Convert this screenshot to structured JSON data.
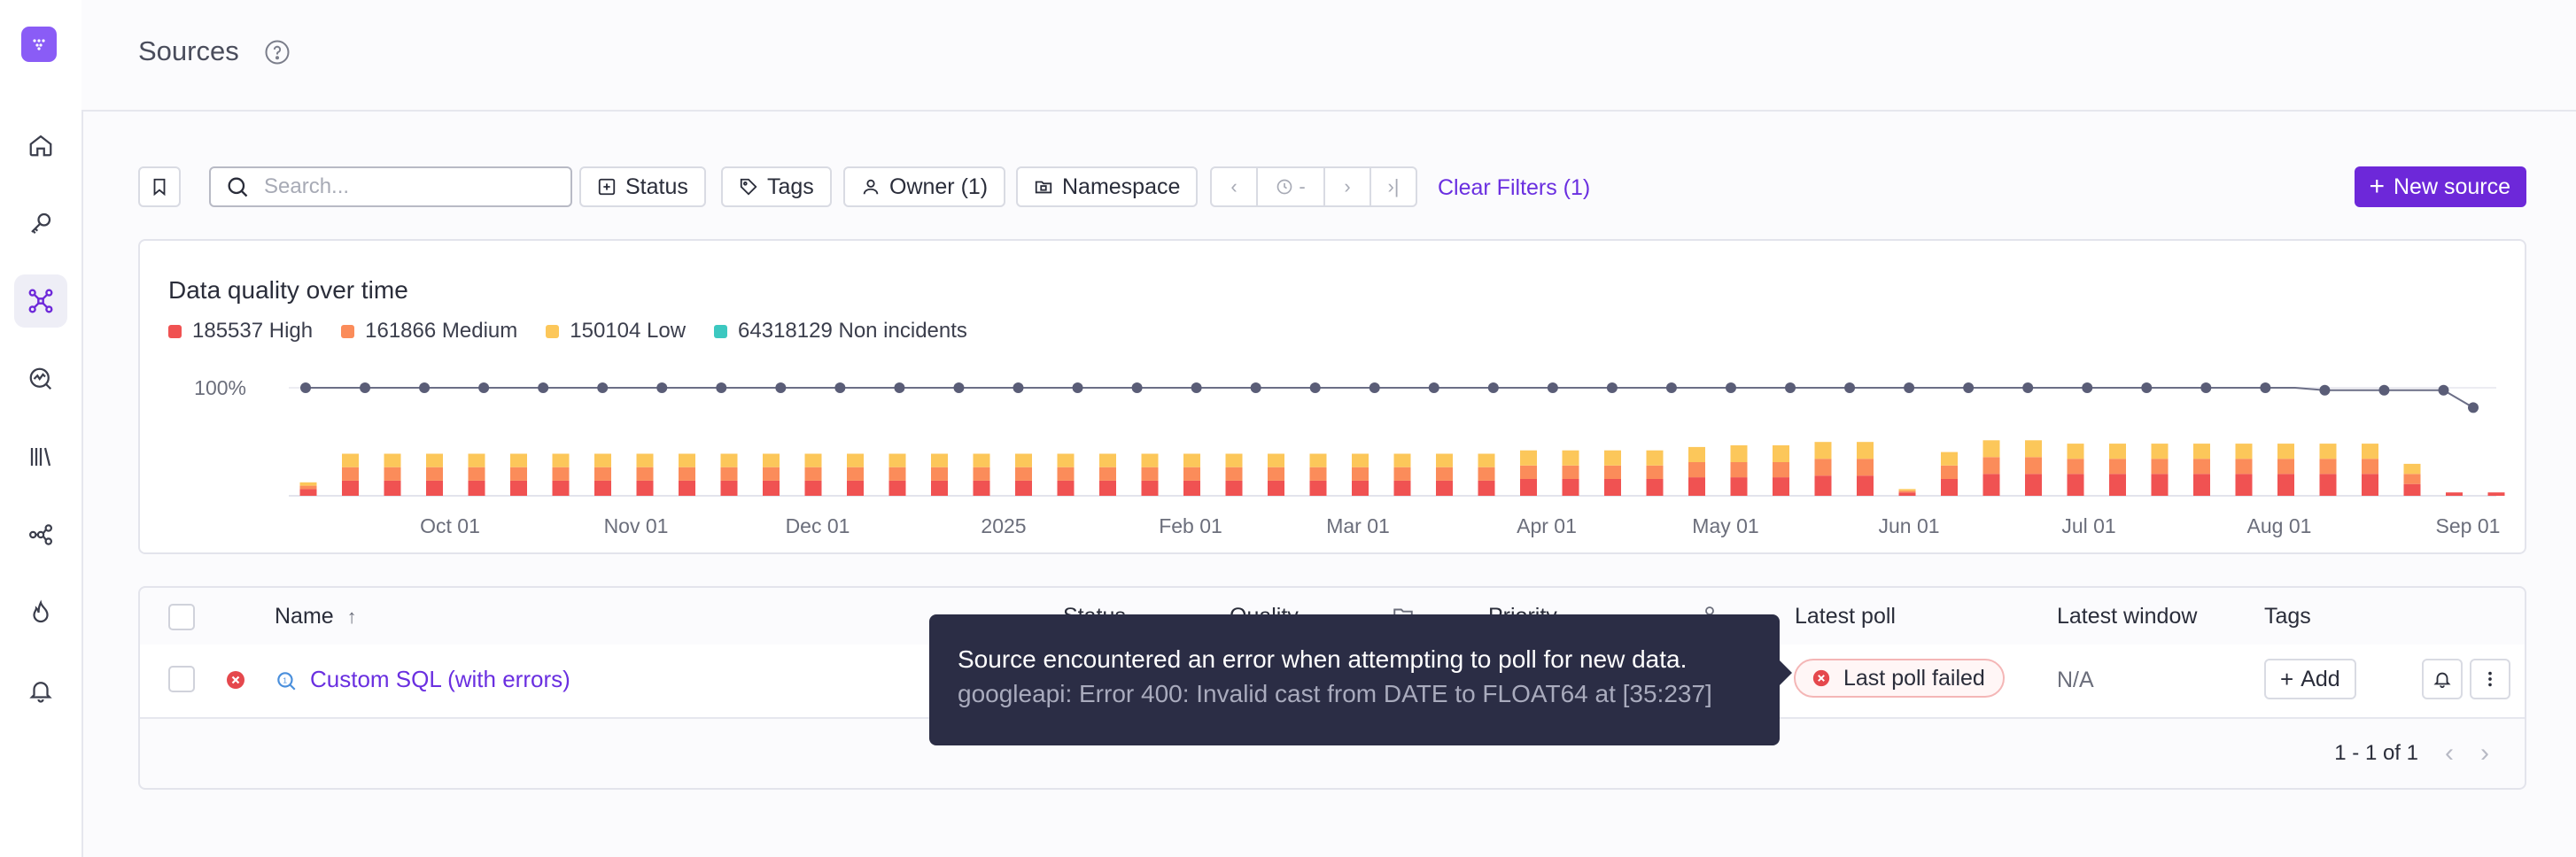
{
  "header": {
    "title": "Sources"
  },
  "filters": {
    "search_placeholder": "Search...",
    "status": "Status",
    "tags": "Tags",
    "owner": "Owner (1)",
    "namespace": "Namespace",
    "range": "-",
    "clear": "Clear Filters (1)",
    "new_source": "New source"
  },
  "chart": {
    "title": "Data quality over time",
    "legend": [
      {
        "label": "185537 High",
        "color": "#f05252"
      },
      {
        "label": "161866 Medium",
        "color": "#fb8c5a"
      },
      {
        "label": "150104 Low",
        "color": "#fcc75a"
      },
      {
        "label": "64318129 Non incidents",
        "color": "#3cc8c0"
      }
    ],
    "y_tick": "100%"
  },
  "chart_data": {
    "type": "bar",
    "title": "Data quality over time",
    "x_ticks": [
      "Oct 01",
      "Nov 01",
      "Dec 01",
      "2025",
      "Feb 01",
      "Mar 01",
      "Apr 01",
      "May 01",
      "Jun 01",
      "Jul 01",
      "Aug 01",
      "Sep 01"
    ],
    "y_ticks": [
      "100%"
    ],
    "series": [
      {
        "name": "High",
        "color": "#f05252",
        "values": [
          4,
          9,
          9,
          9,
          9,
          9,
          9,
          9,
          9,
          9,
          9,
          9,
          9,
          9,
          9,
          9,
          9,
          9,
          9,
          9,
          9,
          9,
          9,
          9,
          9,
          9,
          9,
          9,
          9,
          10,
          10,
          10,
          10,
          11,
          11,
          11,
          12,
          12,
          2,
          10,
          13,
          13,
          13,
          13,
          13,
          13,
          13,
          13,
          13,
          13,
          7,
          2,
          2,
          2,
          2,
          2,
          2,
          2
        ]
      },
      {
        "name": "Medium",
        "color": "#fb8c5a",
        "values": [
          2,
          8,
          8,
          8,
          8,
          8,
          8,
          8,
          8,
          8,
          8,
          8,
          8,
          8,
          8,
          8,
          8,
          8,
          8,
          8,
          8,
          8,
          8,
          8,
          8,
          8,
          8,
          8,
          8,
          8,
          8,
          8,
          8,
          9,
          9,
          9,
          10,
          10,
          1,
          8,
          10,
          10,
          9,
          9,
          9,
          9,
          9,
          9,
          9,
          9,
          6,
          0,
          0,
          0,
          0,
          0,
          0,
          0
        ]
      },
      {
        "name": "Low",
        "color": "#fcc75a",
        "values": [
          2,
          8,
          8,
          8,
          8,
          8,
          8,
          8,
          8,
          8,
          8,
          8,
          8,
          8,
          8,
          8,
          8,
          8,
          8,
          8,
          8,
          8,
          8,
          8,
          8,
          8,
          8,
          8,
          8,
          9,
          9,
          9,
          9,
          9,
          10,
          10,
          10,
          10,
          1,
          8,
          10,
          10,
          9,
          9,
          9,
          9,
          9,
          9,
          9,
          9,
          6,
          0,
          0,
          0,
          0,
          0,
          0,
          0
        ]
      }
    ],
    "quality_line": {
      "name": "Quality",
      "values": [
        100,
        100,
        100,
        100,
        100,
        100,
        100,
        100,
        100,
        100,
        100,
        100,
        100,
        100,
        100,
        100,
        100,
        100,
        100,
        100,
        100,
        100,
        100,
        100,
        100,
        100,
        100,
        100,
        100,
        100,
        100,
        100,
        100,
        100,
        100,
        100,
        100,
        100,
        100,
        100,
        100,
        100,
        100,
        100,
        100,
        100,
        100,
        100,
        100,
        100,
        100,
        100,
        100,
        100,
        100,
        100,
        100,
        100,
        100,
        100,
        100,
        100,
        100,
        100,
        100,
        100,
        100,
        100,
        99,
        99,
        99,
        99,
        99,
        92
      ]
    }
  },
  "table": {
    "headers": {
      "name": "Name",
      "status": "Status",
      "quality": "Quality",
      "priority": "Priority",
      "latest_poll": "Latest poll",
      "latest_window": "Latest window",
      "tags": "Tags"
    },
    "rows": [
      {
        "name": "Custom SQL (with errors)",
        "latest_poll": "Last poll failed",
        "latest_window": "N/A",
        "add_label": "Add"
      }
    ],
    "pagination": "1 - 1 of 1"
  },
  "tooltip": {
    "title": "Source encountered an error when attempting to poll for new data.",
    "detail": "googleapi: Error 400: Invalid cast from DATE to FLOAT64 at [35:237]"
  },
  "colors": {
    "accent": "#6d28d9",
    "link": "#6a2fe0",
    "error": "#e5484d",
    "tooltip_bg": "#2b2d45"
  },
  "icons": [
    "home-icon",
    "key-icon",
    "sources-icon",
    "monitor-icon",
    "library-icon",
    "lineage-icon",
    "flame-icon",
    "bell-icon"
  ]
}
